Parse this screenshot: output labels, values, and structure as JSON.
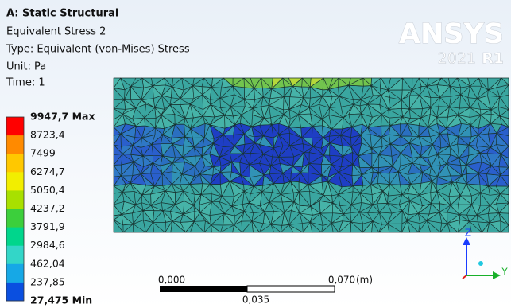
{
  "header": {
    "title": "A: Static Structural",
    "lines": [
      "Equivalent Stress 2",
      "Type: Equivalent (von-Mises) Stress",
      "Unit: Pa",
      "Time: 1"
    ]
  },
  "logo": {
    "name": "ANSYS",
    "version": "2021",
    "release": "R1"
  },
  "legend": {
    "labels": [
      "9947,7 Max",
      "8723,4",
      "7499",
      "6274,7",
      "5050,4",
      "4237,2",
      "3791,9",
      "2984,6",
      "462,04",
      "237,85",
      "27,475 Min"
    ],
    "colors": [
      "#ff0000",
      "#ff8a00",
      "#ffc800",
      "#f2ee00",
      "#a8e000",
      "#3ccf3c",
      "#00d68c",
      "#33d6c8",
      "#16a8e6",
      "#0a4fe0"
    ]
  },
  "scale_bar": {
    "start": "0,000",
    "end": "0,070",
    "unit": "(m)",
    "mid": "0,035"
  },
  "triad": {
    "z": "Z",
    "y": "Y"
  }
}
